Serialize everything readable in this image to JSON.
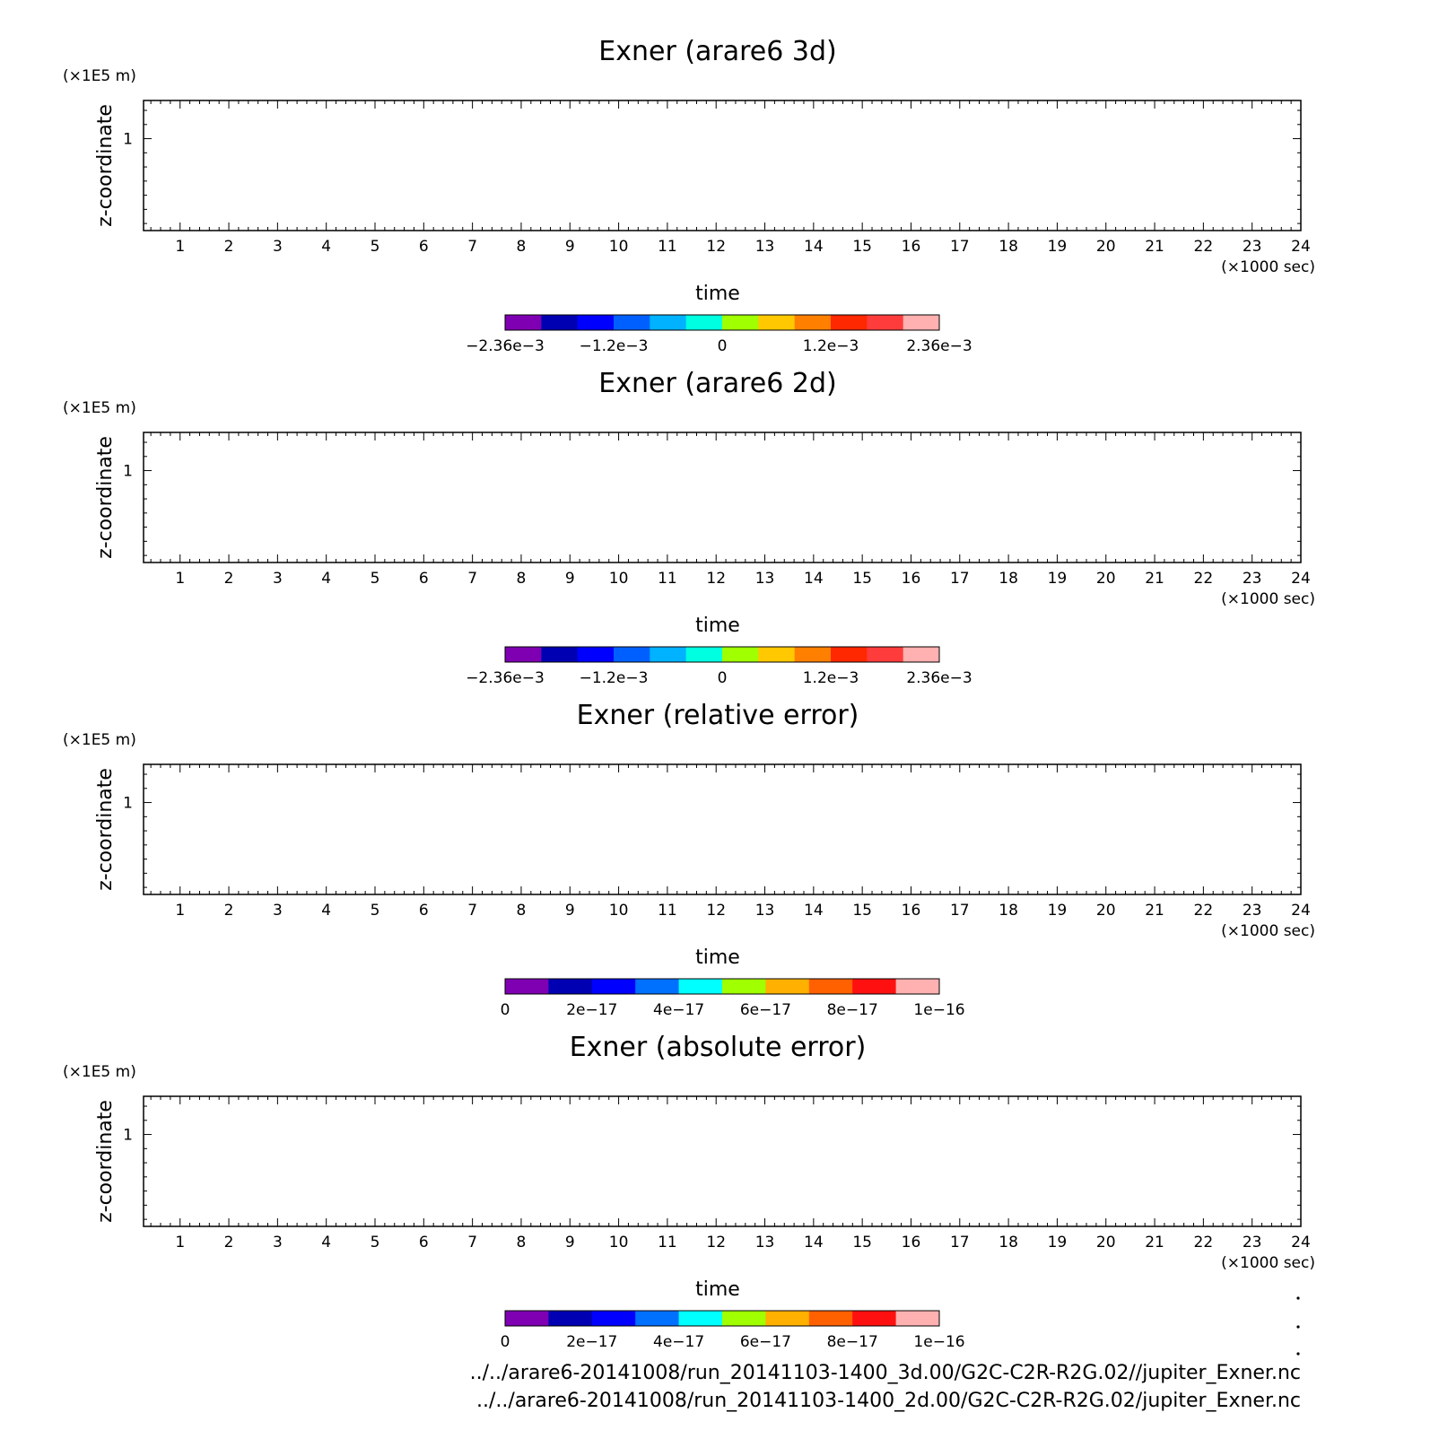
{
  "chart_data": [
    {
      "type": "heatmap",
      "title": "Exner (arare6 3d)",
      "xlabel": "time",
      "x_units": "(×1000 sec)",
      "ylabel": "z-coordinate",
      "y_units": "(×1E5 m)",
      "xlim": [
        0.25,
        24
      ],
      "ylim": [
        0.35,
        1.27
      ],
      "x_ticks": [
        "1",
        "2",
        "3",
        "4",
        "5",
        "6",
        "7",
        "8",
        "9",
        "10",
        "11",
        "12",
        "13",
        "14",
        "15",
        "16",
        "17",
        "18",
        "19",
        "20",
        "21",
        "22",
        "23",
        "24"
      ],
      "y_ticks": [
        "1"
      ],
      "colorbar": {
        "colors": [
          "#7f00b2",
          "#0000b2",
          "#0000ff",
          "#0060ff",
          "#00b2ff",
          "#00ffe0",
          "#a0ff00",
          "#ffc800",
          "#ff8000",
          "#ff2800",
          "#ff3c3c",
          "#ffb0b0"
        ],
        "labels": [
          "−2.36e−3",
          "−1.2e−3",
          "0",
          "1.2e−3",
          "2.36e−3"
        ],
        "label_positions": [
          0,
          3,
          6,
          9,
          12
        ]
      },
      "has_field": true
    },
    {
      "type": "heatmap",
      "title": "Exner (arare6 2d)",
      "xlabel": "time",
      "x_units": "(×1000 sec)",
      "ylabel": "z-coordinate",
      "y_units": "(×1E5 m)",
      "xlim": [
        0.25,
        24
      ],
      "ylim": [
        0.35,
        1.27
      ],
      "x_ticks": [
        "1",
        "2",
        "3",
        "4",
        "5",
        "6",
        "7",
        "8",
        "9",
        "10",
        "11",
        "12",
        "13",
        "14",
        "15",
        "16",
        "17",
        "18",
        "19",
        "20",
        "21",
        "22",
        "23",
        "24"
      ],
      "y_ticks": [
        "1"
      ],
      "colorbar": {
        "colors": [
          "#7f00b2",
          "#0000b2",
          "#0000ff",
          "#0060ff",
          "#00b2ff",
          "#00ffe0",
          "#a0ff00",
          "#ffc800",
          "#ff8000",
          "#ff2800",
          "#ff3c3c",
          "#ffb0b0"
        ],
        "labels": [
          "−2.36e−3",
          "−1.2e−3",
          "0",
          "1.2e−3",
          "2.36e−3"
        ],
        "label_positions": [
          0,
          3,
          6,
          9,
          12
        ]
      },
      "has_field": true
    },
    {
      "type": "heatmap",
      "title": "Exner (relative error)",
      "xlabel": "time",
      "x_units": "(×1000 sec)",
      "ylabel": "z-coordinate",
      "y_units": "(×1E5 m)",
      "xlim": [
        0.25,
        24
      ],
      "ylim": [
        0.35,
        1.27
      ],
      "x_ticks": [
        "1",
        "2",
        "3",
        "4",
        "5",
        "6",
        "7",
        "8",
        "9",
        "10",
        "11",
        "12",
        "13",
        "14",
        "15",
        "16",
        "17",
        "18",
        "19",
        "20",
        "21",
        "22",
        "23",
        "24"
      ],
      "y_ticks": [
        "1"
      ],
      "colorbar": {
        "colors": [
          "#7f00b2",
          "#0000b2",
          "#0000ff",
          "#0070ff",
          "#00ffff",
          "#a0ff00",
          "#ffb000",
          "#ff6000",
          "#ff1010",
          "#ffb0b0"
        ],
        "labels": [
          "0",
          "2e−17",
          "4e−17",
          "6e−17",
          "8e−17",
          "1e−16"
        ],
        "label_positions": [
          0,
          2,
          4,
          6,
          8,
          10
        ]
      },
      "has_field": false
    },
    {
      "type": "heatmap",
      "title": "Exner (absolute error)",
      "xlabel": "time",
      "x_units": "(×1000 sec)",
      "ylabel": "z-coordinate",
      "y_units": "(×1E5 m)",
      "xlim": [
        0.25,
        24
      ],
      "ylim": [
        0.35,
        1.27
      ],
      "x_ticks": [
        "1",
        "2",
        "3",
        "4",
        "5",
        "6",
        "7",
        "8",
        "9",
        "10",
        "11",
        "12",
        "13",
        "14",
        "15",
        "16",
        "17",
        "18",
        "19",
        "20",
        "21",
        "22",
        "23",
        "24"
      ],
      "y_ticks": [
        "1"
      ],
      "colorbar": {
        "colors": [
          "#7f00b2",
          "#0000b2",
          "#0000ff",
          "#0070ff",
          "#00ffff",
          "#a0ff00",
          "#ffb000",
          "#ff6000",
          "#ff1010",
          "#ffb0b0"
        ],
        "labels": [
          "0",
          "2e−17",
          "4e−17",
          "6e−17",
          "8e−17",
          "1e−16"
        ],
        "label_positions": [
          0,
          2,
          4,
          6,
          8,
          10
        ]
      },
      "has_field": false
    }
  ],
  "footer": {
    "file_3d": "../../arare6-20141008/run_20141103-1400_3d.00/G2C-C2R-R2G.02//jupiter_Exner.nc",
    "file_2d": "../../arare6-20141008/run_20141103-1400_2d.00/G2C-C2R-R2G.02/jupiter_Exner.nc"
  }
}
